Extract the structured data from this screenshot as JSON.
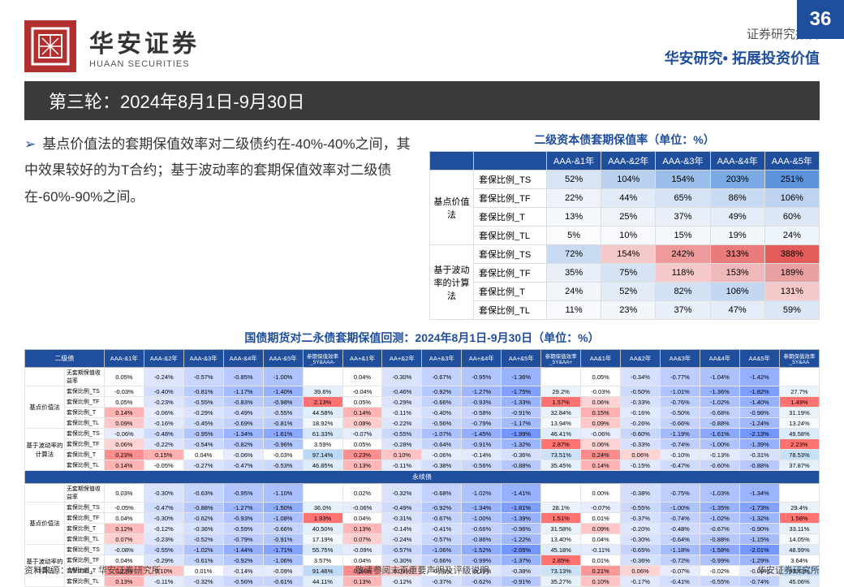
{
  "page_number": "36",
  "brand_cn": "华安证券",
  "brand_en": "HUAAN SECURITIES",
  "report_type": "证券研究报告",
  "tagline": "华安研究• 拓展投资价值",
  "title": "第三轮：2024年8月1日-9月30日",
  "bullet": "基点价值法的套期保值效率对二级债约在-40%-40%之间，其中效果较好的为T合约；基于波动率的套期保值效率对二级债在-60%-90%之间。",
  "table1_title": "二级资本债套期保值率（单位：%）",
  "table1": {
    "cols": [
      "AAA-&1年",
      "AAA-&2年",
      "AAA-&3年",
      "AAA-&4年",
      "AAA-&5年"
    ],
    "groups": [
      {
        "name": "基点价值法",
        "rows": [
          {
            "label": "套保比例_TS",
            "v": [
              "52%",
              "104%",
              "154%",
              "203%",
              "251%"
            ],
            "c": [
              "#d9e4f5",
              "#b9d0ef",
              "#9abde9",
              "#7ba9e3",
              "#5c95dd"
            ]
          },
          {
            "label": "套保比例_TF",
            "v": [
              "22%",
              "44%",
              "65%",
              "86%",
              "106%"
            ],
            "c": [
              "#eef3fb",
              "#e2ebf8",
              "#d5e3f5",
              "#c9dbf2",
              "#bdd3ef"
            ]
          },
          {
            "label": "套保比例_T",
            "v": [
              "13%",
              "25%",
              "37%",
              "49%",
              "60%"
            ],
            "c": [
              "#f5f8fc",
              "#eff4fb",
              "#e9f0f9",
              "#e3ecf8",
              "#dde8f6"
            ]
          },
          {
            "label": "套保比例_TL",
            "v": [
              "5%",
              "10%",
              "15%",
              "19%",
              "24%"
            ],
            "c": [
              "#fafbfd",
              "#f7f9fd",
              "#f4f8fc",
              "#f1f6fb",
              "#eef4fb"
            ]
          }
        ]
      },
      {
        "name": "基于波动率的计算法",
        "rows": [
          {
            "label": "套保比例_TS",
            "v": [
              "72%",
              "154%",
              "242%",
              "313%",
              "388%"
            ],
            "c": [
              "#c9dbf2",
              "#f5c9c9",
              "#ef9a9a",
              "#e97b7b",
              "#e35c5c"
            ]
          },
          {
            "label": "套保比例_TF",
            "v": [
              "35%",
              "75%",
              "118%",
              "153%",
              "189%"
            ],
            "c": [
              "#e9f0f9",
              "#d5e3f5",
              "#f5c9c9",
              "#efb9b9",
              "#e9a0a0"
            ]
          },
          {
            "label": "套保比例_T",
            "v": [
              "24%",
              "52%",
              "82%",
              "106%",
              "131%"
            ],
            "c": [
              "#f1f6fb",
              "#e2ebf8",
              "#d2e1f4",
              "#c3d7f1",
              "#f5c9c9"
            ]
          },
          {
            "label": "套保比例_TL",
            "v": [
              "11%",
              "23%",
              "37%",
              "47%",
              "59%"
            ],
            "c": [
              "#f8fafd",
              "#f1f6fb",
              "#eaf0f9",
              "#e3ecf8",
              "#dce7f6"
            ]
          }
        ]
      }
    ]
  },
  "table2_title": "国债期货对二永债套期保值回测：2024年8月1日-9月30日（单位：%）",
  "table2": {
    "sections": [
      "二级债",
      "永续债"
    ],
    "head_groups": [
      {
        "cols": [
          "AAA-&1年",
          "AAA-&2年",
          "AAA-&3年",
          "AAA-&4年",
          "AAA-&5年"
        ]
      },
      {
        "label": "参期保值效率_5Y&AAA-"
      },
      {
        "cols": [
          "AA+&1年",
          "AA+&2年",
          "AA+&3年",
          "AA+&4年",
          "AA+&5年"
        ]
      },
      {
        "label": "参期保值效率_5Y&AA+"
      },
      {
        "cols": [
          "AA&1年",
          "AA&2年",
          "AA&3年",
          "AA&4年",
          "AA&5年"
        ]
      },
      {
        "label": "参期保值效率_5Y&AA"
      }
    ],
    "row_labels": [
      "无套期保值收益率",
      "套保比例_TS",
      "套保比例_TF",
      "套保比例_T",
      "套保比例_TL",
      "套保比例_TS",
      "套保比例_TF",
      "套保比例_T",
      "套保比例_TL"
    ],
    "row_groups": [
      {
        "name": "",
        "span": 1
      },
      {
        "name": "基点价值法",
        "span": 4
      },
      {
        "name": "基于波动率的计算法",
        "span": 4
      }
    ],
    "sec1": [
      [
        "0.05%",
        "-0.24%",
        "-0.57%",
        "-0.85%",
        "-1.00%",
        "",
        "0.04%",
        "-0.30%",
        "-0.67%",
        "-0.95%",
        "-1.36%",
        "",
        "0.05%",
        "-0.34%",
        "-0.77%",
        "-1.04%",
        "-1.42%",
        ""
      ],
      [
        "-0.03%",
        "-0.40%",
        "-0.81%",
        "-1.17%",
        "-1.40%",
        "39.6%",
        "-0.04%",
        "-0.46%",
        "-0.92%",
        "-1.27%",
        "-1.75%",
        "29.2%",
        "-0.03%",
        "-0.50%",
        "-1.01%",
        "-1.36%",
        "-1.82%",
        "27.7%"
      ],
      [
        "0.05%",
        "-0.23%",
        "-0.55%",
        "-0.83%",
        "-0.98%",
        "2.13%",
        "0.05%",
        "-0.29%",
        "-0.66%",
        "-0.93%",
        "-1.33%",
        "1.57%",
        "0.06%",
        "-0.33%",
        "-0.76%",
        "-1.02%",
        "-1.40%",
        "1.49%"
      ],
      [
        "0.14%",
        "-0.06%",
        "-0.29%",
        "-0.49%",
        "-0.55%",
        "44.58%",
        "0.14%",
        "-0.11%",
        "-0.40%",
        "-0.58%",
        "-0.91%",
        "32.84%",
        "0.15%",
        "-0.16%",
        "-0.50%",
        "-0.68%",
        "-0.98%",
        "31.19%"
      ],
      [
        "0.09%",
        "-0.16%",
        "-0.45%",
        "-0.69%",
        "-0.81%",
        "18.92%",
        "0.08%",
        "-0.22%",
        "-0.56%",
        "-0.79%",
        "-1.17%",
        "13.94%",
        "0.09%",
        "-0.26%",
        "-0.66%",
        "-0.88%",
        "-1.24%",
        "13.24%"
      ],
      [
        "-0.06%",
        "-0.48%",
        "-0.95%",
        "-1.34%",
        "-1.61%",
        "61.33%",
        "-0.07%",
        "-0.55%",
        "-1.07%",
        "-1.45%",
        "-1.99%",
        "46.41%",
        "-0.06%",
        "-0.60%",
        "-1.19%",
        "-1.61%",
        "-2.13%",
        "49.58%"
      ],
      [
        "0.06%",
        "-0.22%",
        "-0.54%",
        "-0.82%",
        "-0.96%",
        "3.59%",
        "0.05%",
        "-0.28%",
        "-0.64%",
        "-0.91%",
        "-1.32%",
        "2.87%",
        "0.06%",
        "-0.33%",
        "-0.74%",
        "-1.00%",
        "-1.39%",
        "2.23%"
      ],
      [
        "0.23%",
        "0.15%",
        "0.04%",
        "-0.06%",
        "-0.03%",
        "97.14%",
        "0.23%",
        "0.10%",
        "-0.06%",
        "-0.14%",
        "-0.36%",
        "73.51%",
        "0.24%",
        "0.06%",
        "-0.10%",
        "-0.13%",
        "-0.31%",
        "78.53%"
      ],
      [
        "0.14%",
        "-0.05%",
        "-0.27%",
        "-0.47%",
        "-0.53%",
        "46.85%",
        "0.13%",
        "-0.11%",
        "-0.38%",
        "-0.56%",
        "-0.88%",
        "35.45%",
        "0.14%",
        "-0.15%",
        "-0.47%",
        "-0.60%",
        "-0.88%",
        "37.87%"
      ]
    ],
    "sec2": [
      [
        "0.03%",
        "-0.30%",
        "-0.63%",
        "-0.95%",
        "-1.10%",
        "",
        "0.02%",
        "-0.32%",
        "-0.68%",
        "-1.02%",
        "-1.41%",
        "",
        "0.00%",
        "-0.38%",
        "-0.75%",
        "-1.03%",
        "-1.34%",
        ""
      ],
      [
        "-0.05%",
        "-0.47%",
        "-0.88%",
        "-1.27%",
        "-1.50%",
        "36.0%",
        "-0.06%",
        "-0.49%",
        "-0.92%",
        "-1.34%",
        "-1.81%",
        "28.1%",
        "-0.07%",
        "-0.55%",
        "-1.00%",
        "-1.35%",
        "-1.73%",
        "29.4%"
      ],
      [
        "0.04%",
        "-0.30%",
        "-0.62%",
        "-0.93%",
        "-1.08%",
        "1.93%",
        "0.04%",
        "-0.31%",
        "-0.67%",
        "-1.00%",
        "-1.39%",
        "1.51%",
        "0.01%",
        "-0.37%",
        "-0.74%",
        "-1.02%",
        "-1.32%",
        "1.58%"
      ],
      [
        "0.12%",
        "-0.12%",
        "-0.36%",
        "-0.59%",
        "-0.66%",
        "40.50%",
        "0.13%",
        "-0.14%",
        "-0.41%",
        "-0.66%",
        "-0.96%",
        "31.58%",
        "0.09%",
        "-0.20%",
        "-0.48%",
        "-0.67%",
        "-0.90%",
        "33.11%"
      ],
      [
        "0.07%",
        "-0.23%",
        "-0.52%",
        "-0.79%",
        "-0.91%",
        "17.19%",
        "0.07%",
        "-0.24%",
        "-0.57%",
        "-0.86%",
        "-1.22%",
        "13.40%",
        "0.04%",
        "-0.30%",
        "-0.64%",
        "-0.88%",
        "-1.15%",
        "14.05%"
      ],
      [
        "-0.08%",
        "-0.55%",
        "-1.02%",
        "-1.44%",
        "-1.71%",
        "55.75%",
        "-0.09%",
        "-0.57%",
        "-1.06%",
        "-1.52%",
        "-2.05%",
        "45.18%",
        "-0.11%",
        "-0.65%",
        "-1.18%",
        "-1.58%",
        "-2.01%",
        "48.99%"
      ],
      [
        "0.04%",
        "-0.29%",
        "-0.61%",
        "-0.92%",
        "-1.06%",
        "3.57%",
        "0.04%",
        "-0.30%",
        "-0.66%",
        "-0.99%",
        "-1.37%",
        "2.85%",
        "0.01%",
        "-0.36%",
        "-0.72%",
        "-0.99%",
        "-1.29%",
        "3.64%"
      ],
      [
        "0.23%",
        "0.10%",
        "0.01%",
        "-0.14%",
        "-0.09%",
        "91.46%",
        "0.24%",
        "0.09%",
        "-0.03%",
        "-0.19%",
        "-0.38%",
        "73.13%",
        "0.21%",
        "0.06%",
        "-0.07%",
        "-0.02%",
        "-0.09%",
        "93.43%"
      ],
      [
        "0.13%",
        "-0.11%",
        "-0.32%",
        "-0.56%",
        "-0.61%",
        "44.11%",
        "0.13%",
        "-0.12%",
        "-0.37%",
        "-0.62%",
        "-0.91%",
        "35.27%",
        "0.10%",
        "-0.17%",
        "-0.41%",
        "-0.55%",
        "-0.74%",
        "45.06%"
      ]
    ]
  },
  "source": "资料来源：Wind，华安证券研究所",
  "disclaimer": "敬请参阅末页重要声明及评级说明",
  "footer_right": "华安证券研究所"
}
